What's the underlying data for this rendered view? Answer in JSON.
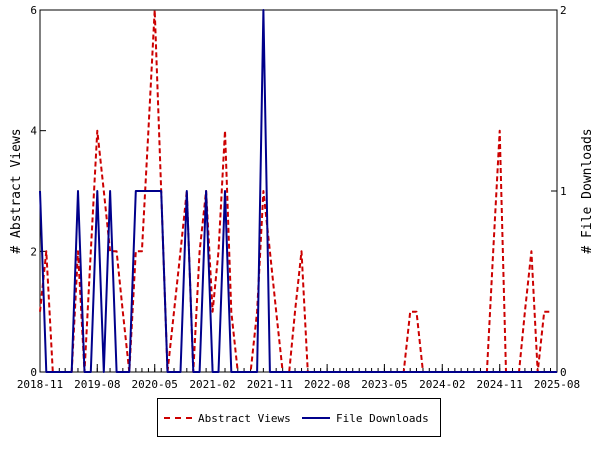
{
  "chart_data": {
    "type": "line",
    "grid": false,
    "x_ticks": [
      "2018-11",
      "2019-08",
      "2020-05",
      "2021-02",
      "2021-11",
      "2022-08",
      "2023-05",
      "2024-02",
      "2024-11",
      "2025-08"
    ],
    "y_left": {
      "label": "# Abstract Views",
      "ticks": [
        "0",
        "2",
        "4",
        "6"
      ],
      "range": [
        0,
        6
      ]
    },
    "y_right": {
      "label": "# File Downloads",
      "ticks": [
        "0",
        "1",
        "2"
      ],
      "range": [
        0,
        2
      ]
    },
    "series": [
      {
        "name": "Abstract Views",
        "axis": "left",
        "color": "#cc0000",
        "style": "dashed",
        "points": [
          [
            "2018-11-01",
            1
          ],
          [
            "2018-12-01",
            2
          ],
          [
            "2019-01-01",
            0
          ],
          [
            "2019-02-01",
            0
          ],
          [
            "2019-03-01",
            0
          ],
          [
            "2019-04-01",
            0
          ],
          [
            "2019-05-01",
            2
          ],
          [
            "2019-06-01",
            0
          ],
          [
            "2019-07-01",
            2
          ],
          [
            "2019-08-01",
            4
          ],
          [
            "2019-09-01",
            3
          ],
          [
            "2019-10-01",
            2
          ],
          [
            "2019-11-01",
            2
          ],
          [
            "2019-12-01",
            1
          ],
          [
            "2020-01-01",
            0
          ],
          [
            "2020-02-01",
            2
          ],
          [
            "2020-03-01",
            2
          ],
          [
            "2020-04-01",
            4
          ],
          [
            "2020-05-01",
            6
          ],
          [
            "2020-06-01",
            3
          ],
          [
            "2020-07-01",
            0
          ],
          [
            "2020-08-01",
            1
          ],
          [
            "2020-09-01",
            2
          ],
          [
            "2020-10-01",
            3
          ],
          [
            "2020-11-01",
            0
          ],
          [
            "2020-12-01",
            2
          ],
          [
            "2021-01-01",
            3
          ],
          [
            "2021-02-01",
            1
          ],
          [
            "2021-03-01",
            2
          ],
          [
            "2021-04-01",
            4
          ],
          [
            "2021-05-01",
            1
          ],
          [
            "2021-06-01",
            0
          ],
          [
            "2021-07-01",
            0
          ],
          [
            "2021-08-01",
            0
          ],
          [
            "2021-09-01",
            1
          ],
          [
            "2021-10-01",
            3
          ],
          [
            "2021-11-01",
            2
          ],
          [
            "2021-12-01",
            1
          ],
          [
            "2022-01-01",
            0
          ],
          [
            "2022-02-01",
            0
          ],
          [
            "2022-03-01",
            1
          ],
          [
            "2022-04-01",
            2
          ],
          [
            "2022-05-01",
            0
          ],
          [
            "2022-06-01",
            0
          ],
          [
            "2023-08-01",
            0
          ],
          [
            "2023-09-01",
            1
          ],
          [
            "2023-10-01",
            1
          ],
          [
            "2023-11-01",
            0
          ],
          [
            "2024-08-01",
            0
          ],
          [
            "2024-09-01",
            0
          ],
          [
            "2024-10-01",
            2
          ],
          [
            "2024-11-01",
            4
          ],
          [
            "2024-12-01",
            0
          ],
          [
            "2025-01-01",
            0
          ],
          [
            "2025-02-01",
            0
          ],
          [
            "2025-03-01",
            1
          ],
          [
            "2025-04-01",
            2
          ],
          [
            "2025-05-01",
            0
          ],
          [
            "2025-06-01",
            1
          ],
          [
            "2025-07-01",
            1
          ]
        ]
      },
      {
        "name": "File Downloads",
        "axis": "right",
        "color": "#00008b",
        "style": "solid",
        "points": [
          [
            "2018-11-01",
            1
          ],
          [
            "2018-12-01",
            0
          ],
          [
            "2019-01-01",
            0
          ],
          [
            "2019-02-01",
            0
          ],
          [
            "2019-03-01",
            0
          ],
          [
            "2019-04-01",
            0
          ],
          [
            "2019-05-01",
            1
          ],
          [
            "2019-06-01",
            0
          ],
          [
            "2019-07-01",
            0
          ],
          [
            "2019-08-01",
            1
          ],
          [
            "2019-09-01",
            0
          ],
          [
            "2019-10-01",
            1
          ],
          [
            "2019-11-01",
            0
          ],
          [
            "2019-12-01",
            0
          ],
          [
            "2020-01-01",
            0
          ],
          [
            "2020-02-01",
            1
          ],
          [
            "2020-03-01",
            1
          ],
          [
            "2020-04-01",
            1
          ],
          [
            "2020-05-01",
            1
          ],
          [
            "2020-06-01",
            1
          ],
          [
            "2020-07-01",
            0
          ],
          [
            "2020-08-01",
            0
          ],
          [
            "2020-09-01",
            0
          ],
          [
            "2020-10-01",
            1
          ],
          [
            "2020-11-01",
            0
          ],
          [
            "2020-12-01",
            0
          ],
          [
            "2021-01-01",
            1
          ],
          [
            "2021-02-01",
            0
          ],
          [
            "2021-03-01",
            0
          ],
          [
            "2021-04-01",
            1
          ],
          [
            "2021-05-01",
            0
          ],
          [
            "2021-06-01",
            0
          ],
          [
            "2021-07-01",
            0
          ],
          [
            "2021-08-01",
            0
          ],
          [
            "2021-09-01",
            0
          ],
          [
            "2021-10-01",
            2
          ],
          [
            "2021-11-01",
            0
          ],
          [
            "2025-08-01",
            0
          ]
        ]
      }
    ]
  }
}
